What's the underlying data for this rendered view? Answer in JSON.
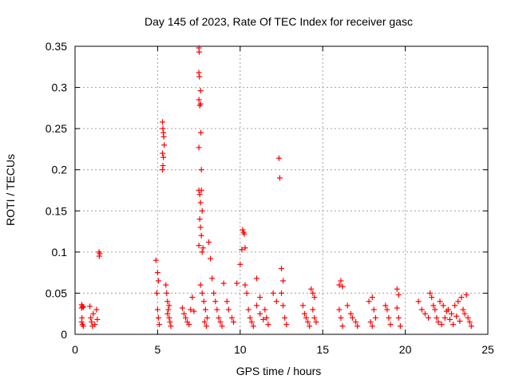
{
  "chart_data": {
    "type": "scatter",
    "title": "Day 145 of 2023, Rate Of TEC Index for receiver gasc",
    "xlabel": "GPS time / hours",
    "ylabel": "ROTI / TECUs",
    "xlim": [
      0,
      25
    ],
    "ylim": [
      0,
      0.35
    ],
    "x_ticks": [
      0,
      5,
      10,
      15,
      20,
      25
    ],
    "y_ticks": [
      0,
      0.05,
      0.1,
      0.15,
      0.2,
      0.25,
      0.3,
      0.35
    ],
    "x_tick_labels": [
      "0",
      "5",
      "10",
      "15",
      "20",
      "25"
    ],
    "y_tick_labels": [
      "0",
      "0.05",
      "0.1",
      "0.15",
      "0.2",
      "0.25",
      "0.3",
      "0.35"
    ],
    "grid": true,
    "series_color": "#ff0000",
    "series": [
      {
        "name": "ROTI",
        "points": [
          [
            0.4,
            0.036
          ],
          [
            0.4,
            0.032
          ],
          [
            0.45,
            0.034
          ],
          [
            0.5,
            0.033
          ],
          [
            0.4,
            0.015
          ],
          [
            0.45,
            0.012
          ],
          [
            0.5,
            0.01
          ],
          [
            0.42,
            0.02
          ],
          [
            0.9,
            0.034
          ],
          [
            0.95,
            0.02
          ],
          [
            1.0,
            0.015
          ],
          [
            1.05,
            0.01
          ],
          [
            1.1,
            0.025
          ],
          [
            1.2,
            0.012
          ],
          [
            1.3,
            0.03
          ],
          [
            1.35,
            0.018
          ],
          [
            1.45,
            0.1
          ],
          [
            1.47,
            0.095
          ],
          [
            1.5,
            0.098
          ],
          [
            4.9,
            0.09
          ],
          [
            5.0,
            0.075
          ],
          [
            5.05,
            0.065
          ],
          [
            4.95,
            0.05
          ],
          [
            5.0,
            0.03
          ],
          [
            5.05,
            0.02
          ],
          [
            5.1,
            0.012
          ],
          [
            5.3,
            0.258
          ],
          [
            5.32,
            0.25
          ],
          [
            5.35,
            0.245
          ],
          [
            5.37,
            0.24
          ],
          [
            5.4,
            0.23
          ],
          [
            5.3,
            0.22
          ],
          [
            5.35,
            0.215
          ],
          [
            5.32,
            0.205
          ],
          [
            5.3,
            0.2
          ],
          [
            5.5,
            0.06
          ],
          [
            5.55,
            0.05
          ],
          [
            5.6,
            0.04
          ],
          [
            5.65,
            0.03
          ],
          [
            5.7,
            0.02
          ],
          [
            5.75,
            0.015
          ],
          [
            5.8,
            0.01
          ],
          [
            5.6,
            0.025
          ],
          [
            5.7,
            0.035
          ],
          [
            6.5,
            0.032
          ],
          [
            6.6,
            0.025
          ],
          [
            6.7,
            0.02
          ],
          [
            6.8,
            0.015
          ],
          [
            6.9,
            0.012
          ],
          [
            7.0,
            0.03
          ],
          [
            7.1,
            0.045
          ],
          [
            7.2,
            0.028
          ],
          [
            7.5,
            0.348
          ],
          [
            7.52,
            0.343
          ],
          [
            7.5,
            0.318
          ],
          [
            7.53,
            0.313
          ],
          [
            7.6,
            0.296
          ],
          [
            7.5,
            0.285
          ],
          [
            7.55,
            0.278
          ],
          [
            7.6,
            0.28
          ],
          [
            7.62,
            0.245
          ],
          [
            7.5,
            0.227
          ],
          [
            7.65,
            0.2
          ],
          [
            7.5,
            0.175
          ],
          [
            7.55,
            0.17
          ],
          [
            7.6,
            0.16
          ],
          [
            7.65,
            0.175
          ],
          [
            7.7,
            0.15
          ],
          [
            7.55,
            0.14
          ],
          [
            7.6,
            0.13
          ],
          [
            7.65,
            0.12
          ],
          [
            7.5,
            0.108
          ],
          [
            7.7,
            0.1
          ],
          [
            7.75,
            0.105
          ],
          [
            7.6,
            0.06
          ],
          [
            7.7,
            0.05
          ],
          [
            7.8,
            0.04
          ],
          [
            7.9,
            0.03
          ],
          [
            8.0,
            0.02
          ],
          [
            7.85,
            0.015
          ],
          [
            7.95,
            0.01
          ],
          [
            8.1,
            0.112
          ],
          [
            8.2,
            0.092
          ],
          [
            8.3,
            0.068
          ],
          [
            8.4,
            0.05
          ],
          [
            8.5,
            0.04
          ],
          [
            8.6,
            0.03
          ],
          [
            8.7,
            0.02
          ],
          [
            8.8,
            0.015
          ],
          [
            8.9,
            0.01
          ],
          [
            9.0,
            0.062
          ],
          [
            9.2,
            0.04
          ],
          [
            9.3,
            0.03
          ],
          [
            9.5,
            0.02
          ],
          [
            9.6,
            0.015
          ],
          [
            9.8,
            0.062
          ],
          [
            10.0,
            0.085
          ],
          [
            10.1,
            0.103
          ],
          [
            10.15,
            0.127
          ],
          [
            10.2,
            0.124
          ],
          [
            10.25,
            0.122
          ],
          [
            10.3,
            0.105
          ],
          [
            10.3,
            0.06
          ],
          [
            10.4,
            0.05
          ],
          [
            10.5,
            0.03
          ],
          [
            10.6,
            0.02
          ],
          [
            10.7,
            0.015
          ],
          [
            10.8,
            0.01
          ],
          [
            11.0,
            0.035
          ],
          [
            11.2,
            0.025
          ],
          [
            11.4,
            0.018
          ],
          [
            11.0,
            0.068
          ],
          [
            11.2,
            0.045
          ],
          [
            11.5,
            0.03
          ],
          [
            11.6,
            0.02
          ],
          [
            11.7,
            0.012
          ],
          [
            12.0,
            0.05
          ],
          [
            12.2,
            0.04
          ],
          [
            12.35,
            0.214
          ],
          [
            12.4,
            0.19
          ],
          [
            12.5,
            0.08
          ],
          [
            12.6,
            0.065
          ],
          [
            12.5,
            0.05
          ],
          [
            12.6,
            0.035
          ],
          [
            12.7,
            0.02
          ],
          [
            12.8,
            0.012
          ],
          [
            13.8,
            0.035
          ],
          [
            13.9,
            0.025
          ],
          [
            14.0,
            0.02
          ],
          [
            14.1,
            0.015
          ],
          [
            14.2,
            0.01
          ],
          [
            14.3,
            0.055
          ],
          [
            14.4,
            0.05
          ],
          [
            14.5,
            0.045
          ],
          [
            14.4,
            0.03
          ],
          [
            14.5,
            0.02
          ],
          [
            14.6,
            0.015
          ],
          [
            16.0,
            0.06
          ],
          [
            16.1,
            0.065
          ],
          [
            16.2,
            0.058
          ],
          [
            16.0,
            0.03
          ],
          [
            16.1,
            0.02
          ],
          [
            16.2,
            0.01
          ],
          [
            16.5,
            0.035
          ],
          [
            16.7,
            0.025
          ],
          [
            16.8,
            0.02
          ],
          [
            17.0,
            0.015
          ],
          [
            17.1,
            0.01
          ],
          [
            17.8,
            0.04
          ],
          [
            18.0,
            0.045
          ],
          [
            18.1,
            0.03
          ],
          [
            18.2,
            0.02
          ],
          [
            17.9,
            0.015
          ],
          [
            18.0,
            0.01
          ],
          [
            18.8,
            0.035
          ],
          [
            18.9,
            0.03
          ],
          [
            19.0,
            0.02
          ],
          [
            19.1,
            0.012
          ],
          [
            19.5,
            0.055
          ],
          [
            19.6,
            0.048
          ],
          [
            19.5,
            0.032
          ],
          [
            19.6,
            0.02
          ],
          [
            19.7,
            0.01
          ],
          [
            20.8,
            0.04
          ],
          [
            21.0,
            0.03
          ],
          [
            21.2,
            0.025
          ],
          [
            21.4,
            0.02
          ],
          [
            21.5,
            0.05
          ],
          [
            21.6,
            0.045
          ],
          [
            21.7,
            0.035
          ],
          [
            21.8,
            0.03
          ],
          [
            21.9,
            0.02
          ],
          [
            22.0,
            0.015
          ],
          [
            22.2,
            0.012
          ],
          [
            22.4,
            0.02
          ],
          [
            22.6,
            0.03
          ],
          [
            22.8,
            0.025
          ],
          [
            23.0,
            0.035
          ],
          [
            23.2,
            0.04
          ],
          [
            23.4,
            0.045
          ],
          [
            23.5,
            0.03
          ],
          [
            23.6,
            0.025
          ],
          [
            23.7,
            0.048
          ],
          [
            23.8,
            0.02
          ],
          [
            23.9,
            0.015
          ],
          [
            24.0,
            0.01
          ],
          [
            22.1,
            0.04
          ],
          [
            22.3,
            0.035
          ],
          [
            22.5,
            0.028
          ],
          [
            22.7,
            0.018
          ],
          [
            22.9,
            0.012
          ],
          [
            23.1,
            0.022
          ],
          [
            23.3,
            0.016
          ]
        ]
      }
    ]
  }
}
